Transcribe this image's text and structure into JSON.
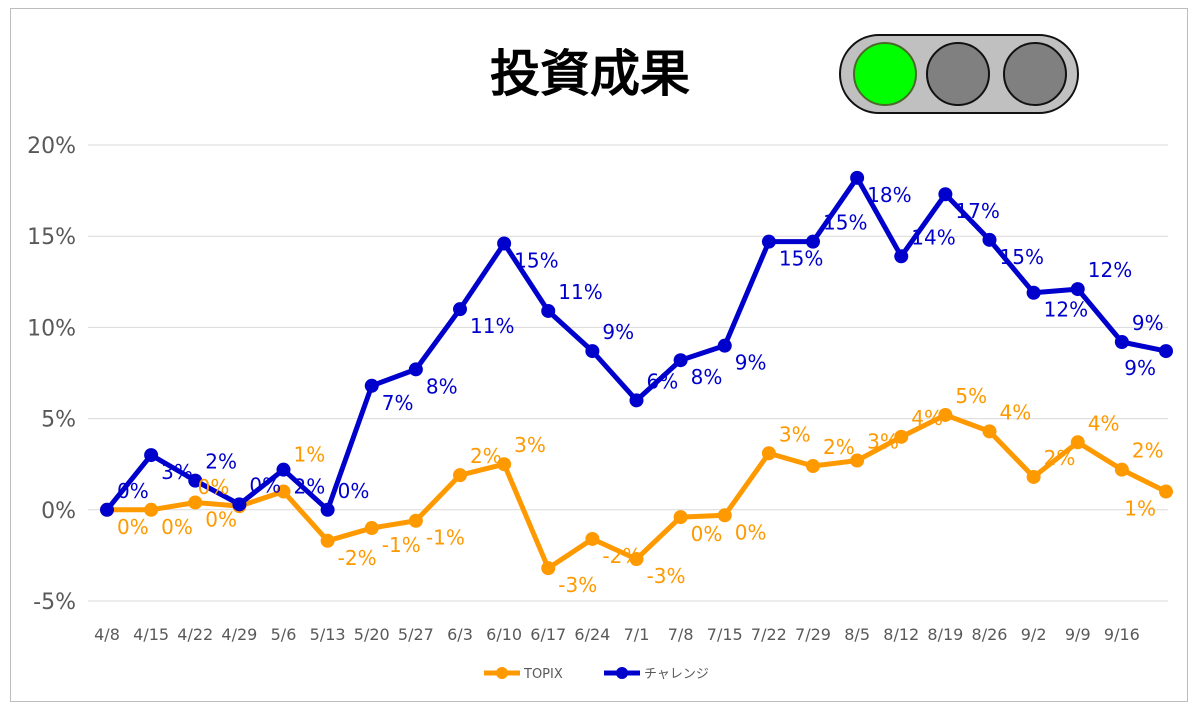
{
  "chart_data": {
    "type": "line",
    "title": "投資成果",
    "categories": [
      "4/8",
      "4/15",
      "4/22",
      "4/29",
      "5/6",
      "5/13",
      "5/20",
      "5/27",
      "6/3",
      "6/10",
      "6/17",
      "6/24",
      "7/1",
      "7/8",
      "7/15",
      "7/22",
      "7/29",
      "8/5",
      "8/12",
      "8/19",
      "8/26",
      "9/2",
      "9/9",
      "9/16",
      ""
    ],
    "yticks": [
      "20%",
      "15%",
      "10%",
      "5%",
      "0%",
      "-5%"
    ],
    "ylim": [
      -5,
      20
    ],
    "yunit": "%",
    "grid": true,
    "legend_position": "bottom",
    "series": [
      {
        "name": "TOPIX",
        "color": "#FF9900",
        "values": [
          0,
          0,
          0.4,
          0.2,
          1.0,
          -1.7,
          -1.0,
          -0.6,
          1.9,
          2.5,
          -3.2,
          -1.6,
          -2.7,
          -0.4,
          -0.3,
          3.1,
          2.4,
          2.7,
          4.0,
          5.2,
          4.3,
          1.8,
          3.7,
          2.2,
          1.0
        ]
      },
      {
        "name": "チャレンジ",
        "color": "#0000CC",
        "values": [
          0,
          3.0,
          1.6,
          0.3,
          2.2,
          0,
          6.8,
          7.7,
          11.0,
          14.6,
          10.9,
          8.7,
          6.0,
          8.2,
          9.0,
          14.7,
          14.7,
          18.2,
          13.9,
          17.3,
          14.8,
          11.9,
          12.1,
          9.2,
          8.7
        ]
      }
    ]
  },
  "traffic_light": {
    "active": "green",
    "colors": {
      "green": "#00FF00",
      "off": "#808080",
      "housing": "#C0C0C0"
    }
  }
}
